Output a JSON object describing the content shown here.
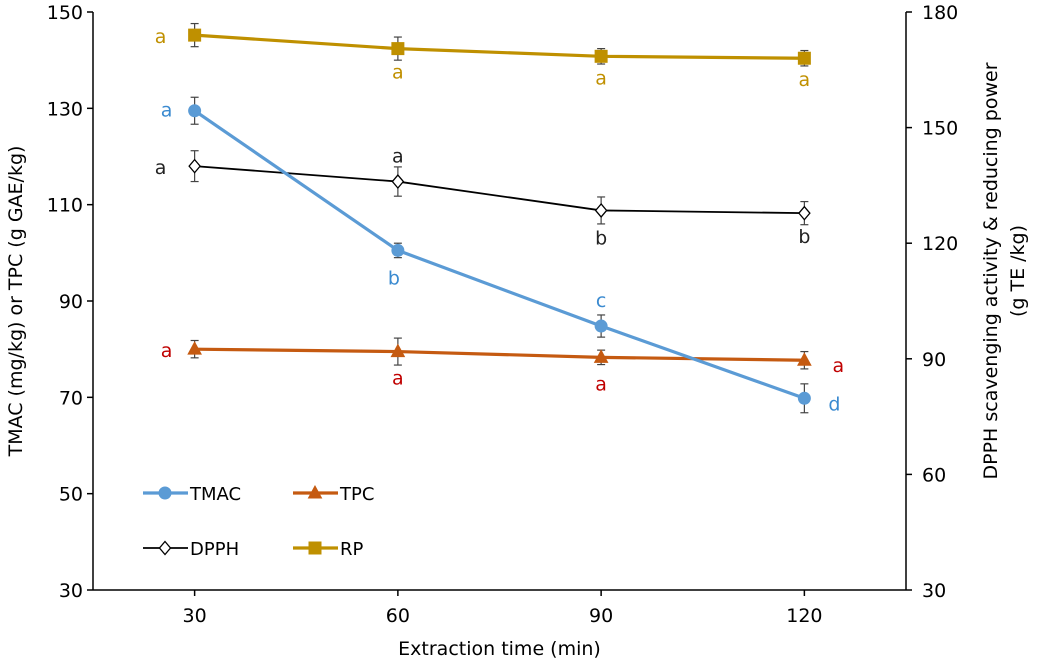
{
  "chart_data": {
    "type": "line",
    "x": [
      30,
      60,
      90,
      120
    ],
    "xlabel": "Extraction time (min)",
    "ylabel": "TMAC (mg/kg) or TPC (g GAE/kg)",
    "y2label_line1": "DPPH scavenging activity & reducing power",
    "y2label_line2": "(g TE /kg)",
    "xlim": [
      15,
      135
    ],
    "ylim": [
      30,
      150
    ],
    "y2lim": [
      30,
      180
    ],
    "x_ticks": [
      "30",
      "60",
      "90",
      "120"
    ],
    "y_ticks": [
      "30",
      "50",
      "70",
      "90",
      "110",
      "130",
      "150"
    ],
    "y2_ticks": [
      "30",
      "60",
      "90",
      "120",
      "150",
      "180"
    ],
    "grid": false,
    "legend_placement": "bottom-left",
    "series": [
      {
        "name": "TMAC",
        "axis": "left",
        "color": "#5b9bd5",
        "marker": "circle",
        "values": [
          129.5,
          100.5,
          84.8,
          69.8
        ],
        "errors": [
          2.8,
          1.5,
          2.3,
          3.0
        ],
        "letters": [
          "a",
          "b",
          "c",
          "d"
        ]
      },
      {
        "name": "TPC",
        "axis": "left",
        "color": "#c55a11",
        "marker": "triangle",
        "values": [
          80.0,
          79.5,
          78.3,
          77.7
        ],
        "errors": [
          1.8,
          2.8,
          1.5,
          1.8
        ],
        "letters": [
          "a",
          "a",
          "a",
          "a"
        ]
      },
      {
        "name": "DPPH",
        "axis": "right",
        "color": "#000000",
        "marker": "diamond",
        "values": [
          140,
          136,
          128.5,
          127.8
        ],
        "errors": [
          4.0,
          3.8,
          3.5,
          3.0
        ],
        "letters": [
          "a",
          "a",
          "b",
          "b"
        ]
      },
      {
        "name": "RP",
        "axis": "right",
        "color": "#bf9000",
        "marker": "square",
        "values": [
          174,
          170.5,
          168.5,
          168
        ],
        "errors": [
          3.0,
          3.0,
          2.0,
          2.0
        ],
        "letters": [
          "a",
          "a",
          "a",
          "a"
        ]
      }
    ]
  }
}
